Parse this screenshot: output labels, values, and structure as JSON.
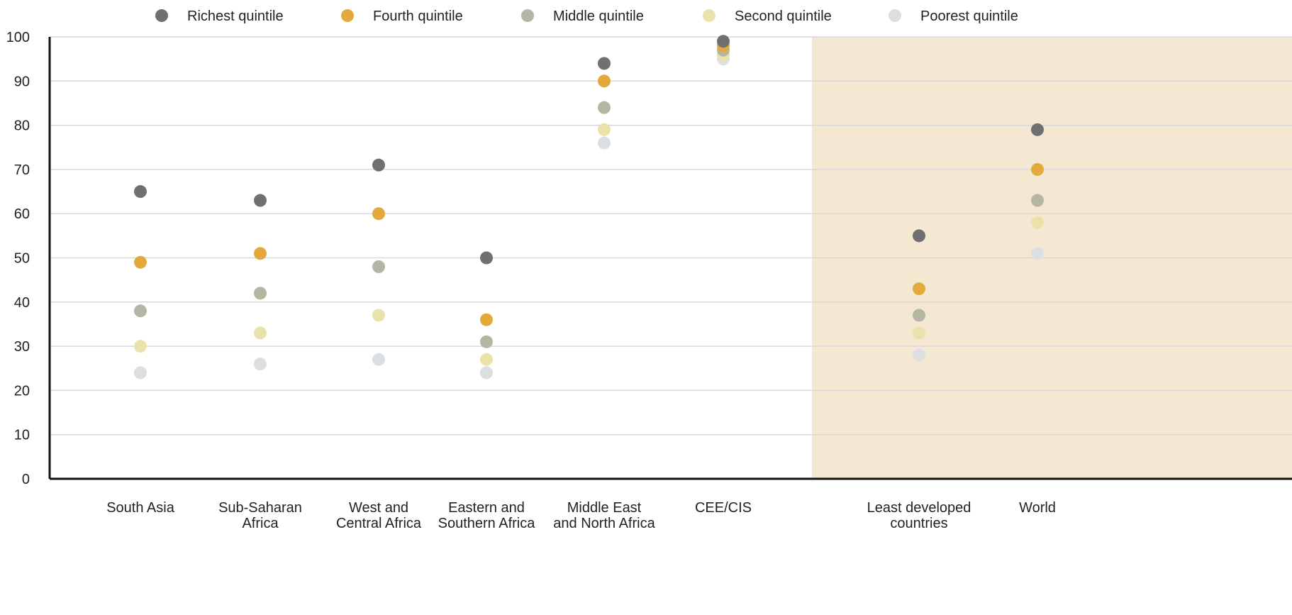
{
  "chart_data": {
    "type": "scatter",
    "title": "",
    "xlabel": "",
    "ylabel": "",
    "ylim": [
      0,
      100
    ],
    "yticks": [
      "0",
      "10",
      "20",
      "30",
      "40",
      "50",
      "60",
      "70",
      "80",
      "90",
      "100"
    ],
    "grid": true,
    "legend_position": "top",
    "categories": [
      [
        "South Asia"
      ],
      [
        "Sub-Saharan",
        "Africa"
      ],
      [
        "West and",
        "Central Africa"
      ],
      [
        "Eastern and",
        "Southern Africa"
      ],
      [
        "Middle East",
        "and North Africa"
      ],
      [
        "CEE/CIS"
      ],
      [
        "Least developed",
        "countries"
      ],
      [
        "World"
      ]
    ],
    "highlighted_categories": [
      6,
      7
    ],
    "highlight_color": "#f5e8d2",
    "series": [
      {
        "name": "Richest quintile",
        "color": "#707070",
        "values": [
          65,
          63,
          71,
          50,
          94,
          99,
          55,
          79
        ]
      },
      {
        "name": "Fourth quintile",
        "color": "#e3a93b",
        "values": [
          49,
          51,
          60,
          36,
          90,
          98,
          43,
          70
        ]
      },
      {
        "name": "Middle quintile",
        "color": "#b5b5a3",
        "values": [
          38,
          42,
          48,
          31,
          84,
          97,
          37,
          63
        ]
      },
      {
        "name": "Second quintile",
        "color": "#ebe1ab",
        "values": [
          30,
          33,
          37,
          27,
          79,
          96,
          33,
          58
        ]
      },
      {
        "name": "Poorest quintile",
        "color": "#dcdfe2",
        "values": [
          24,
          26,
          27,
          24,
          76,
          95,
          28,
          51
        ]
      }
    ]
  }
}
